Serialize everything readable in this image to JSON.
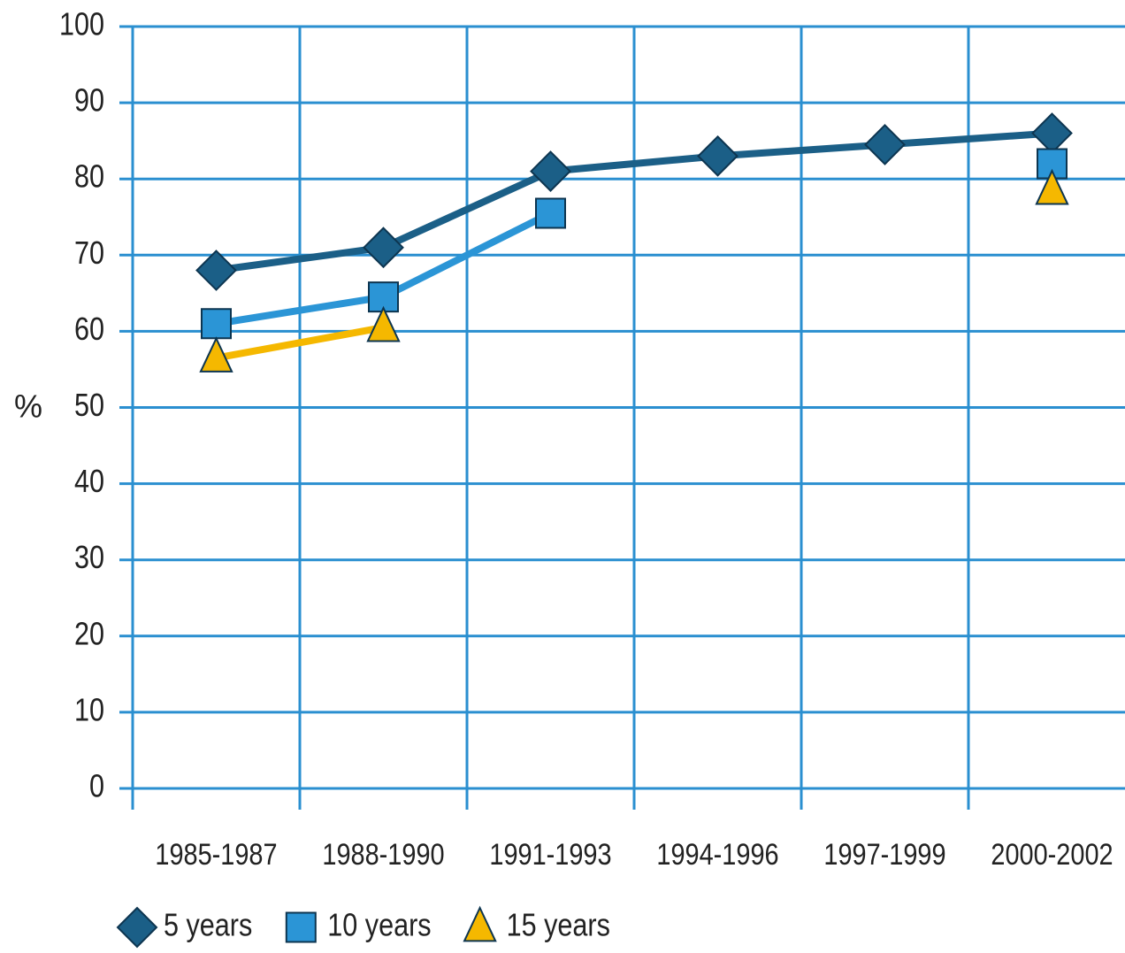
{
  "chart_data": {
    "type": "line",
    "y_label": "%",
    "categories": [
      "1985-1987",
      "1988-1990",
      "1991-1993",
      "1994-1996",
      "1997-1999",
      "2000-2002"
    ],
    "series": [
      {
        "name": "5 years",
        "color": "#1b5f87",
        "marker": "diamond",
        "values": [
          68,
          71,
          81,
          83,
          84.5,
          86
        ]
      },
      {
        "name": "10 years",
        "color": "#2b95d6",
        "marker": "square",
        "values": [
          61,
          64.5,
          75.5,
          null,
          null,
          82
        ]
      },
      {
        "name": "15 years",
        "color": "#f5b800",
        "marker": "triangle",
        "values": [
          56.5,
          60.5,
          null,
          null,
          null,
          78.5
        ]
      }
    ],
    "ylim": [
      0,
      100
    ],
    "yticks": [
      0,
      10,
      20,
      30,
      40,
      50,
      60,
      70,
      80,
      90,
      100
    ],
    "grid": true
  }
}
